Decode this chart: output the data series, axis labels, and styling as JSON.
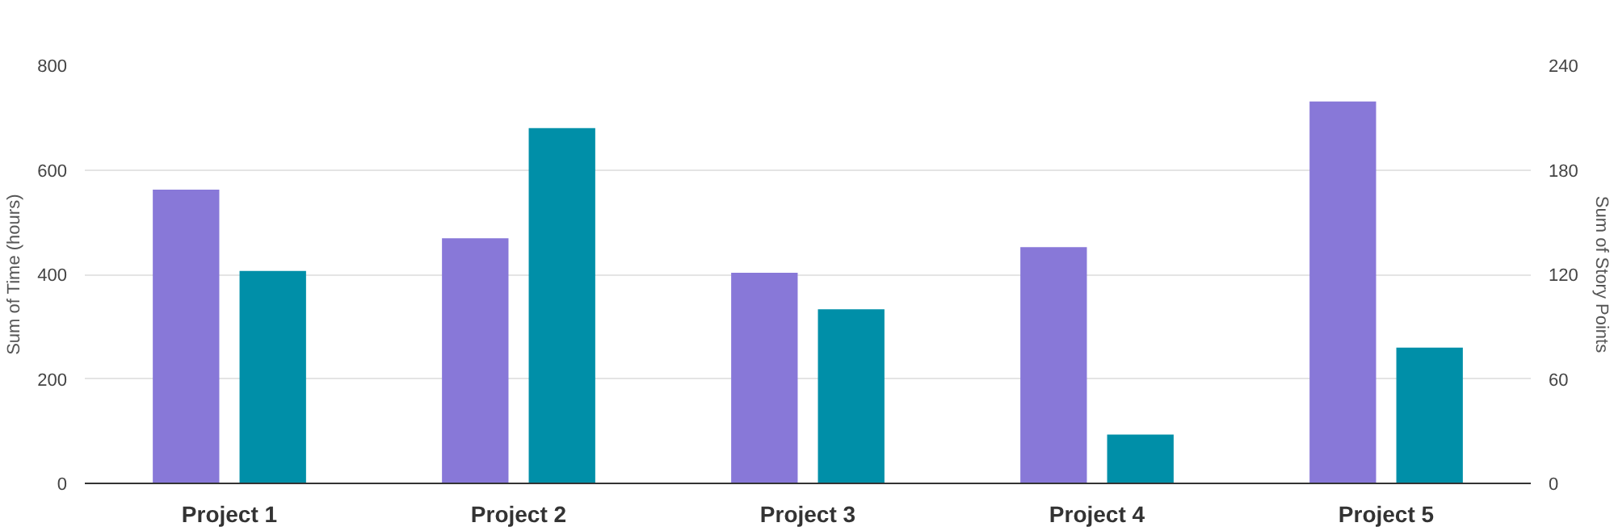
{
  "chart_data": {
    "type": "bar",
    "categories": [
      "Project 1",
      "Project 2",
      "Project 3",
      "Project 4",
      "Project 5"
    ],
    "ylabel": "Sum of Time (hours)",
    "y2label": "Sum of Story Points",
    "series": [
      {
        "color": "#8878d8",
        "values": [
          562,
          469,
          403,
          452,
          731
        ]
      },
      {
        "color": "#008fa8",
        "axis": "y2",
        "values": [
          122,
          204,
          100,
          28,
          78
        ]
      }
    ],
    "ylim": [
      0,
      800
    ],
    "yticks": [
      0,
      200,
      400,
      600,
      800
    ],
    "y2lim": [
      0,
      240
    ],
    "y2ticks": [
      0,
      60,
      120,
      180,
      240
    ],
    "grid": "y"
  }
}
